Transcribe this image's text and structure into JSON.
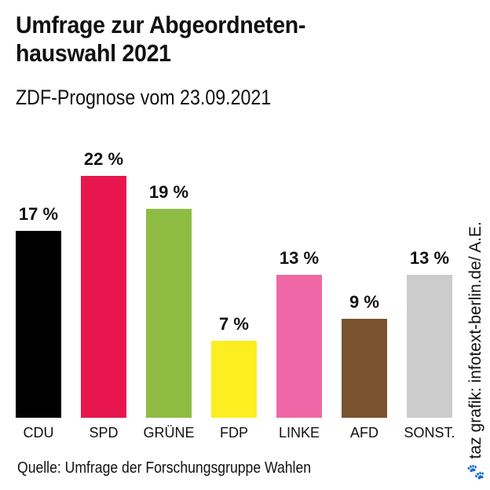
{
  "header": {
    "title_line1": "Umfrage zur Abgeordneten-",
    "title_line2": "hauswahl 2021",
    "subtitle": "ZDF-Prognose vom 23.09.2021"
  },
  "footer": {
    "source": "Quelle: Umfrage der Forschungsgruppe Wahlen",
    "credit": "taz grafik: infotext-berlin.de/ A.E.",
    "credit_icon": "paw-icon"
  },
  "chart_data": {
    "type": "bar",
    "categories": [
      "CDU",
      "SPD",
      "GRÜNE",
      "FDP",
      "LINKE",
      "AFD",
      "SONST."
    ],
    "values": [
      17,
      22,
      19,
      7,
      13,
      9,
      13
    ],
    "value_labels": [
      "17 %",
      "22 %",
      "19 %",
      "7 %",
      "13 %",
      "9 %",
      "13 %"
    ],
    "colors": [
      "#000000",
      "#e8164f",
      "#8fbd43",
      "#fcee21",
      "#ef67a7",
      "#7a5230",
      "#cccccc"
    ],
    "ylim": [
      0,
      22
    ],
    "grid": false,
    "legend": "none"
  }
}
